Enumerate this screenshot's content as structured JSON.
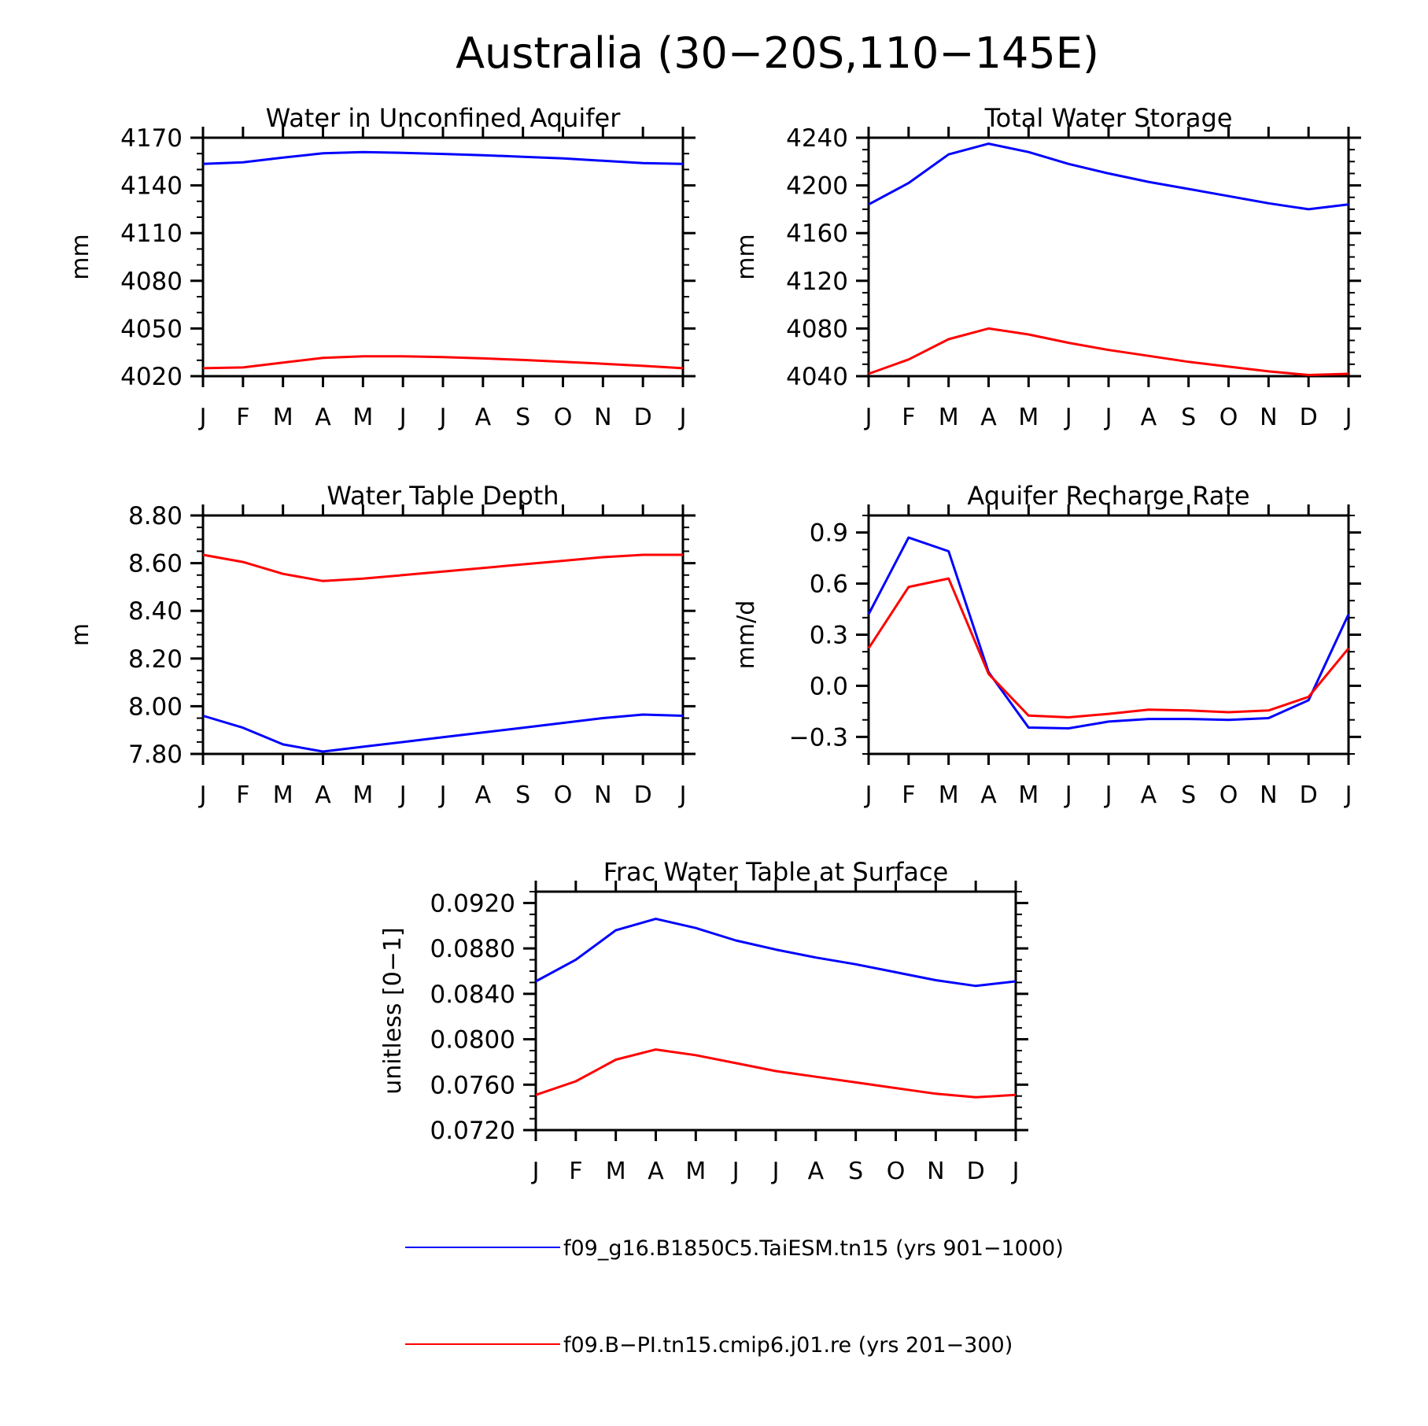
{
  "figure": {
    "title": "Australia (30−20S,110−145E)",
    "legend": [
      {
        "label": "f09_g16.B1850C5.TaiESM.tn15 (yrs 901−1000)",
        "color": "#0000ff"
      },
      {
        "label": "f09.B−PI.tn15.cmip6.j01.re (yrs 201−300)",
        "color": "#ff0000"
      }
    ],
    "series_colors": [
      "#0000ff",
      "#ff0000"
    ]
  },
  "chart_data": [
    {
      "type": "line",
      "title": "Water in Unconfined Aquifer",
      "ylabel": "mm",
      "xlabel": "",
      "x_tick_labels": [
        "J",
        "F",
        "M",
        "A",
        "M",
        "J",
        "J",
        "A",
        "S",
        "O",
        "N",
        "D",
        "J"
      ],
      "ylim": [
        4020,
        4170
      ],
      "y_ticks": [
        "4020",
        "4050",
        "4080",
        "4110",
        "4140",
        "4170"
      ],
      "y_tick_values": [
        4020,
        4050,
        4080,
        4110,
        4140,
        4170
      ],
      "y_minor_step": 10,
      "series": [
        {
          "color": "#0000ff",
          "values": [
            4153.5,
            4154.5,
            4157.5,
            4160.2,
            4161,
            4160.5,
            4159.8,
            4159,
            4158,
            4157,
            4155.5,
            4154,
            4153.5
          ]
        },
        {
          "color": "#ff0000",
          "values": [
            4025,
            4025.5,
            4028.5,
            4031.5,
            4032.5,
            4032.5,
            4032,
            4031.2,
            4030.2,
            4029,
            4027.8,
            4026.5,
            4025
          ]
        }
      ]
    },
    {
      "type": "line",
      "title": "Total Water Storage",
      "ylabel": "mm",
      "xlabel": "",
      "x_tick_labels": [
        "J",
        "F",
        "M",
        "A",
        "M",
        "J",
        "J",
        "A",
        "S",
        "O",
        "N",
        "D",
        "J"
      ],
      "ylim": [
        4040,
        4240
      ],
      "y_ticks": [
        "4040",
        "4080",
        "4120",
        "4160",
        "4200",
        "4240"
      ],
      "y_tick_values": [
        4040,
        4080,
        4120,
        4160,
        4200,
        4240
      ],
      "y_minor_step": 10,
      "series": [
        {
          "color": "#0000ff",
          "values": [
            4184,
            4202,
            4226,
            4235,
            4228,
            4218,
            4210,
            4203,
            4197,
            4191,
            4185,
            4180,
            4184
          ]
        },
        {
          "color": "#ff0000",
          "values": [
            4042,
            4054,
            4071,
            4080,
            4075,
            4068,
            4062,
            4057,
            4052,
            4048,
            4044,
            4041,
            4042
          ]
        }
      ]
    },
    {
      "type": "line",
      "title": "Water Table Depth",
      "ylabel": "m",
      "xlabel": "",
      "x_tick_labels": [
        "J",
        "F",
        "M",
        "A",
        "M",
        "J",
        "J",
        "A",
        "S",
        "O",
        "N",
        "D",
        "J"
      ],
      "ylim": [
        7.8,
        8.8
      ],
      "y_ticks": [
        "7.80",
        "8.00",
        "8.20",
        "8.40",
        "8.60",
        "8.80"
      ],
      "y_tick_values": [
        7.8,
        8.0,
        8.2,
        8.4,
        8.6,
        8.8
      ],
      "y_minor_step": 0.05,
      "series": [
        {
          "color": "#0000ff",
          "values": [
            7.96,
            7.91,
            7.84,
            7.81,
            7.83,
            7.85,
            7.87,
            7.89,
            7.91,
            7.93,
            7.95,
            7.965,
            7.96
          ]
        },
        {
          "color": "#ff0000",
          "values": [
            8.635,
            8.605,
            8.555,
            8.525,
            8.535,
            8.55,
            8.565,
            8.58,
            8.595,
            8.61,
            8.625,
            8.635,
            8.635
          ]
        }
      ]
    },
    {
      "type": "line",
      "title": "Aquifer Recharge Rate",
      "ylabel": "mm/d",
      "xlabel": "",
      "x_tick_labels": [
        "J",
        "F",
        "M",
        "A",
        "M",
        "J",
        "J",
        "A",
        "S",
        "O",
        "N",
        "D",
        "J"
      ],
      "ylim": [
        -0.4,
        1.0
      ],
      "y_ticks": [
        "−0.3",
        "0.0",
        "0.3",
        "0.6",
        "0.9"
      ],
      "y_tick_values": [
        -0.3,
        0.0,
        0.3,
        0.6,
        0.9
      ],
      "y_minor_step": 0.1,
      "series": [
        {
          "color": "#0000ff",
          "values": [
            0.42,
            0.87,
            0.79,
            0.08,
            -0.245,
            -0.25,
            -0.21,
            -0.195,
            -0.195,
            -0.2,
            -0.19,
            -0.085,
            0.42
          ]
        },
        {
          "color": "#ff0000",
          "values": [
            0.22,
            0.58,
            0.63,
            0.07,
            -0.175,
            -0.185,
            -0.165,
            -0.14,
            -0.145,
            -0.155,
            -0.145,
            -0.065,
            0.22
          ]
        }
      ]
    },
    {
      "type": "line",
      "title": "Frac Water Table at Surface",
      "ylabel": "unitless [0−1]",
      "xlabel": "",
      "x_tick_labels": [
        "J",
        "F",
        "M",
        "A",
        "M",
        "J",
        "J",
        "A",
        "S",
        "O",
        "N",
        "D",
        "J"
      ],
      "ylim": [
        0.072,
        0.093
      ],
      "y_ticks": [
        "0.0720",
        "0.0760",
        "0.0800",
        "0.0840",
        "0.0880",
        "0.0920"
      ],
      "y_tick_values": [
        0.072,
        0.076,
        0.08,
        0.084,
        0.088,
        0.092
      ],
      "y_minor_step": 0.001,
      "series": [
        {
          "color": "#0000ff",
          "values": [
            0.0851,
            0.087,
            0.0896,
            0.0906,
            0.0898,
            0.0887,
            0.0879,
            0.0872,
            0.0866,
            0.0859,
            0.0852,
            0.0847,
            0.0851
          ]
        },
        {
          "color": "#ff0000",
          "values": [
            0.0751,
            0.0763,
            0.0782,
            0.0791,
            0.0786,
            0.0779,
            0.0772,
            0.0767,
            0.0762,
            0.0757,
            0.0752,
            0.0749,
            0.0751
          ]
        }
      ]
    }
  ]
}
